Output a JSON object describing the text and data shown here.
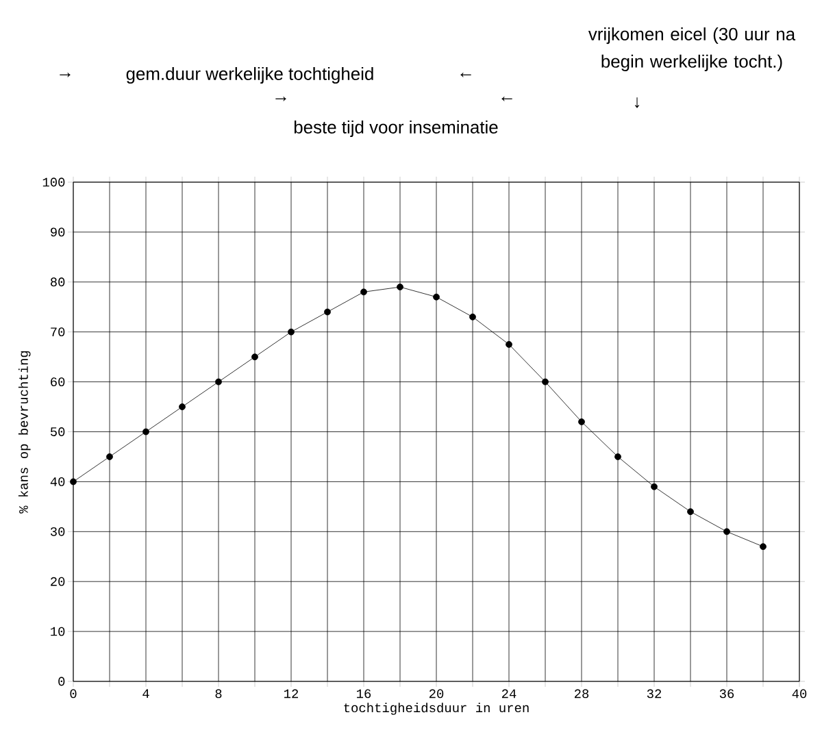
{
  "chart_data": {
    "type": "line",
    "xlabel": "tochtigheidsduur in uren",
    "ylabel": "% kans op bevruchting",
    "x": [
      0,
      2,
      4,
      6,
      8,
      10,
      12,
      14,
      16,
      18,
      20,
      22,
      24,
      26,
      28,
      30,
      32,
      34,
      36,
      38
    ],
    "values": [
      40,
      45,
      50,
      55,
      60,
      65,
      70,
      74,
      78,
      79,
      77,
      73,
      67.5,
      60,
      52,
      45,
      39,
      34,
      30,
      27
    ],
    "color": "#000000",
    "marker": "circle",
    "line_style": "solid",
    "grid": true,
    "xlim": [
      0,
      40
    ],
    "xticks": [
      0,
      {
        "value": 2,
        "label": null
      },
      4,
      {
        "value": 6,
        "label": null
      },
      8,
      {
        "value": 10,
        "label": null
      },
      12,
      {
        "value": 14,
        "label": null
      },
      16,
      {
        "value": 18,
        "label": null
      },
      20,
      {
        "value": 22,
        "label": null
      },
      24,
      {
        "value": 26,
        "label": null
      },
      28,
      {
        "value": 30,
        "label": null
      },
      32,
      {
        "value": 34,
        "label": null
      },
      36,
      {
        "value": 38,
        "label": null
      },
      40
    ],
    "ylim": [
      0,
      100
    ],
    "yticks": [
      0,
      10,
      20,
      30,
      40,
      50,
      60,
      70,
      80,
      90,
      100
    ],
    "annotations": [
      "vrijkomen eicel (30 uur na begin werkelijke tocht.)",
      "→",
      "gem.duur werkelijke tochtigheid",
      "←",
      "→",
      "←",
      "↓",
      "beste tijd voor inseminatie"
    ]
  }
}
